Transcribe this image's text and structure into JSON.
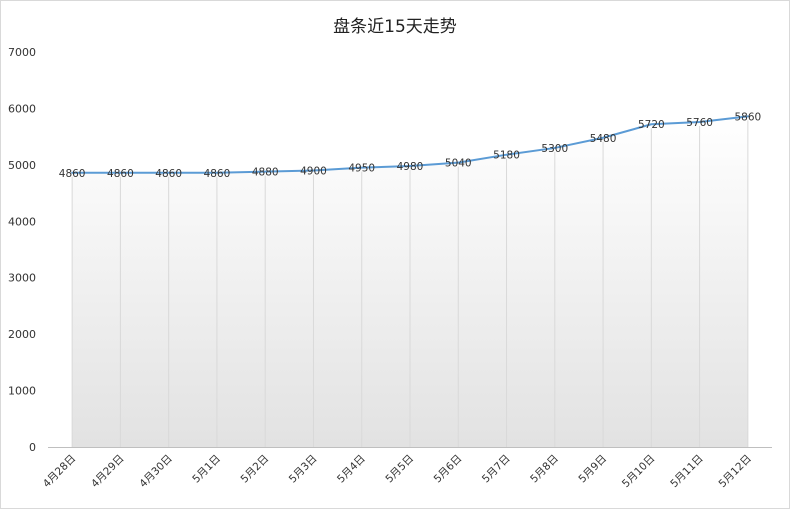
{
  "chart_data": {
    "type": "area",
    "title": "盘条近15天走势",
    "xlabel": "",
    "ylabel": "",
    "categories": [
      "4月28日",
      "4月29日",
      "4月30日",
      "5月1日",
      "5月2日",
      "5月3日",
      "5月4日",
      "5月5日",
      "5月6日",
      "5月7日",
      "5月8日",
      "5月9日",
      "5月10日",
      "5月11日",
      "5月12日"
    ],
    "series": [
      {
        "values": [
          4860,
          4860,
          4860,
          4860,
          4880,
          4900,
          4950,
          4980,
          5040,
          5180,
          5300,
          5480,
          5720,
          5760,
          5860
        ],
        "color": "#5b9bd5"
      }
    ],
    "ylim": [
      0,
      7000
    ],
    "yticks": [
      "0",
      "1000",
      "2000",
      "3000",
      "4000",
      "5000",
      "6000",
      "7000"
    ],
    "data_labels": [
      "4860",
      "4860",
      "4860",
      "4860",
      "4880",
      "4900",
      "4950",
      "4980",
      "5040",
      "5180",
      "5300",
      "5480",
      "5720",
      "5760",
      "5860"
    ],
    "grid": "vertical",
    "legend": "none",
    "fill_gradient": [
      "#ffffff",
      "#e2e2e2"
    ]
  }
}
